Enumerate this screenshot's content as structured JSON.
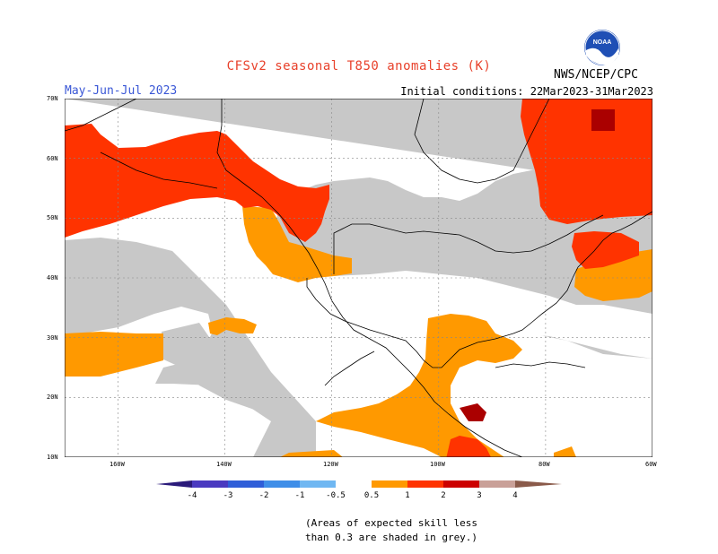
{
  "header": {
    "title": "CFSv2 seasonal T850 anomalies (K)",
    "period": "May-Jun-Jul 2023",
    "initial_conditions": "Initial conditions: 22Mar2023-31Mar2023",
    "agency": "NWS/NCEP/CPC",
    "logo_text": "NOAA"
  },
  "axes": {
    "lat_labels": [
      "70N",
      "60N",
      "50N",
      "40N",
      "30N",
      "20N",
      "10N"
    ],
    "lon_labels": [
      "160W",
      "140W",
      "120W",
      "100W",
      "80W",
      "60W"
    ]
  },
  "colorbar": {
    "tick_labels": [
      "-4",
      "-3",
      "-2",
      "-1",
      "-0.5",
      "0.5",
      "1",
      "2",
      "3",
      "4"
    ],
    "colors": {
      "below_-4": "#2a1a7a",
      "-4_-3": "#4a3ac0",
      "-3_-2": "#2f5ed8",
      "-2_-1": "#3f8ee8",
      "-1_-0.5": "#6fb7f2",
      "-0.5_0.5": "#ffffff",
      "0.5_1": "#ff9900",
      "1_2": "#ff3300",
      "2_3": "#cc0000",
      "3_4": "#990000",
      "4_plus": "#c9a098",
      "above": "#8a5a4a"
    }
  },
  "map_colors": {
    "grey": "#c8c8c8",
    "orange": "#ff9900",
    "red_orange": "#ff3300",
    "dark_red": "#aa0000",
    "land_outline": "#000000"
  },
  "note": {
    "line1": "(Areas of expected skill less",
    "line2": "than 0.3 are shaded in grey.)"
  }
}
